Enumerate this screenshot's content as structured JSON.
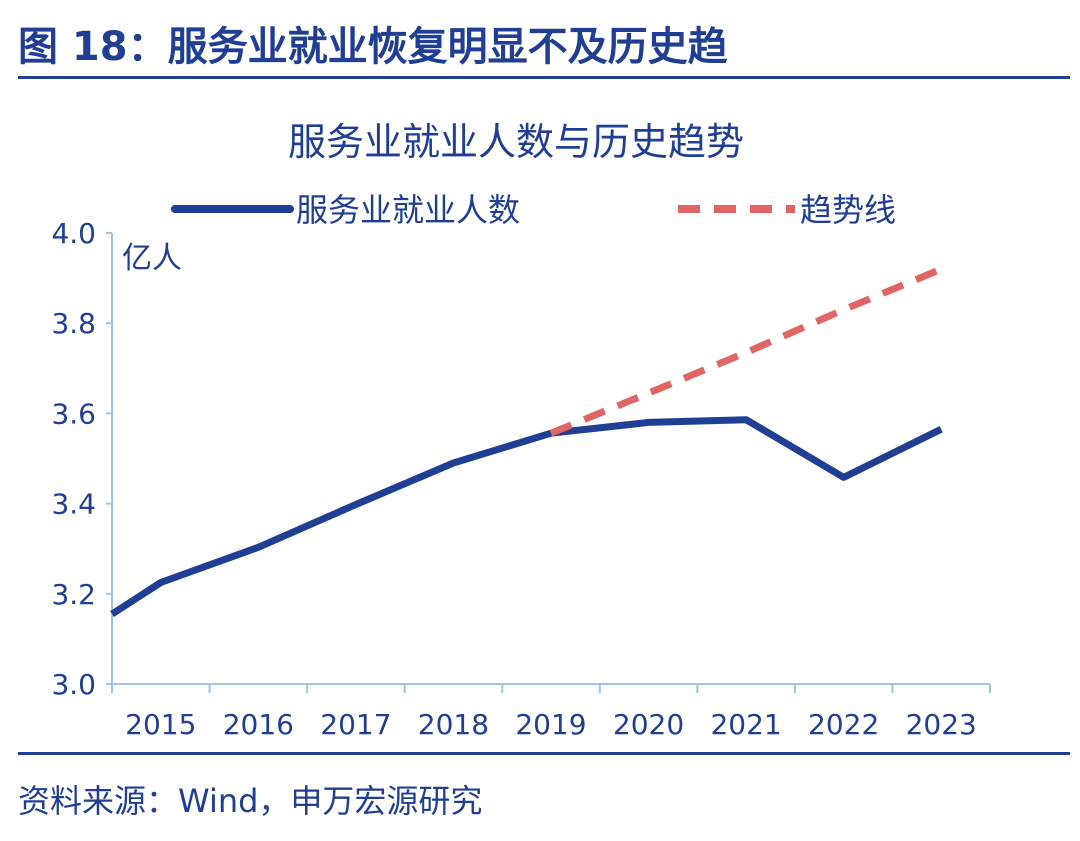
{
  "header": {
    "figure_title": "图 18：服务业就业恢复明显不及历史趋"
  },
  "footer": {
    "source": "资料来源：Wind，申万宏源研究"
  },
  "colors": {
    "brand_blue": "#1f3e94",
    "series_blue": "#1f3e94",
    "trend_red": "#e06666",
    "axis": "#9dc3e6"
  },
  "chart_data": {
    "type": "line",
    "title": "服务业就业人数与历史趋势",
    "xlabel": "",
    "ylabel": "亿人",
    "ylim": [
      3.0,
      4.0
    ],
    "yticks": [
      "3.0",
      "3.2",
      "3.4",
      "3.6",
      "3.8",
      "4.0"
    ],
    "categories": [
      "2015",
      "2016",
      "2017",
      "2018",
      "2019",
      "2020",
      "2021",
      "2022",
      "2023"
    ],
    "grid": false,
    "legend_position": "top",
    "series": [
      {
        "name": "服务业就业人数",
        "style": "solid",
        "color": "#1f3e94",
        "x": [
          2014.5,
          2015.0,
          2016.0,
          2017.0,
          2018.0,
          2019.0,
          2020.0,
          2021.0,
          2022.0,
          2023.0
        ],
        "y": [
          3.155,
          3.225,
          3.303,
          3.398,
          3.49,
          3.556,
          3.58,
          3.586,
          3.458,
          3.565
        ]
      },
      {
        "name": "趋势线",
        "style": "dashed",
        "color": "#e06666",
        "x": [
          2019.0,
          2020.0,
          2021.0,
          2022.0,
          2023.0
        ],
        "y": [
          3.556,
          3.645,
          3.735,
          3.83,
          3.92
        ]
      }
    ]
  }
}
